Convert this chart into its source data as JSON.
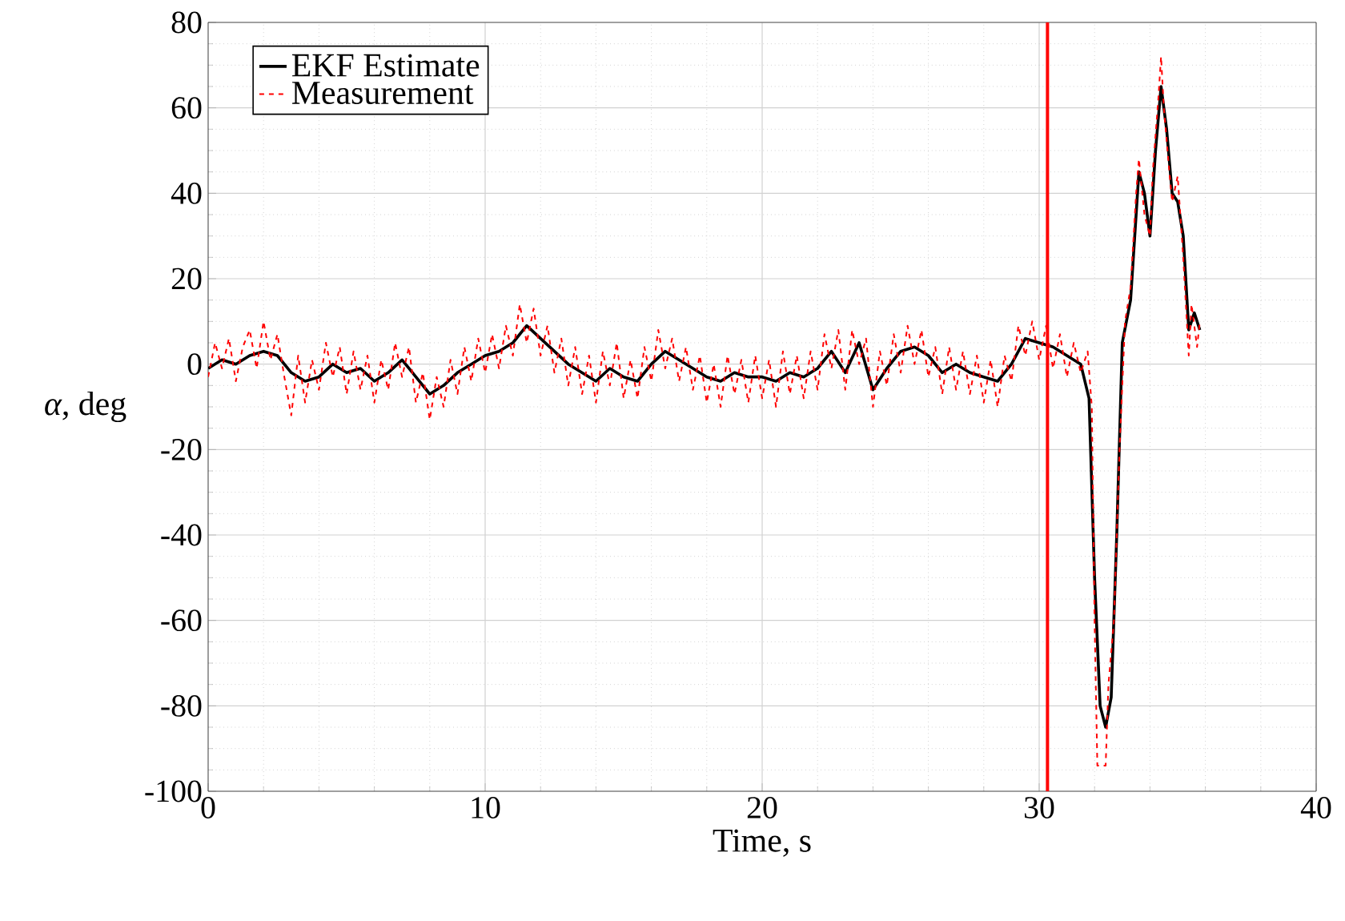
{
  "chart_data": {
    "type": "line",
    "xlabel": "Time, s",
    "ylabel": "*α*, deg",
    "xlim": [
      0,
      40
    ],
    "ylim": [
      -100,
      80
    ],
    "xticks": [
      0,
      10,
      20,
      30,
      40
    ],
    "yticks": [
      -100,
      -80,
      -60,
      -40,
      -20,
      0,
      20,
      40,
      60,
      80
    ],
    "grid": true,
    "legend": "top left",
    "ref_lines": [
      {
        "axis": "x",
        "value": 30.3,
        "color": "#ff0000",
        "line_style": "solid"
      }
    ],
    "series": [
      {
        "name": "EKF Estimate",
        "color": "#000000",
        "line_style": "solid",
        "x": [
          0,
          0.5,
          1,
          1.5,
          2,
          2.5,
          3,
          3.5,
          4,
          4.5,
          5,
          5.5,
          6,
          6.5,
          7,
          7.5,
          8,
          8.5,
          9,
          9.5,
          10,
          10.5,
          11,
          11.5,
          12,
          12.5,
          13,
          13.5,
          14,
          14.5,
          15,
          15.5,
          16,
          16.5,
          17,
          17.5,
          18,
          18.5,
          19,
          19.5,
          20,
          20.5,
          21,
          21.5,
          22,
          22.5,
          23,
          23.5,
          24,
          24.5,
          25,
          25.5,
          26,
          26.5,
          27,
          27.5,
          28,
          28.5,
          29,
          29.5,
          30,
          30.5,
          31,
          31.5,
          31.8,
          32,
          32.2,
          32.4,
          32.6,
          32.8,
          33,
          33.3,
          33.6,
          33.8,
          34,
          34.2,
          34.4,
          34.6,
          34.8,
          35,
          35.2,
          35.4,
          35.6,
          35.8
        ],
        "values": [
          -1,
          1,
          0,
          2,
          3,
          2,
          -2,
          -4,
          -3,
          0,
          -2,
          -1,
          -4,
          -2,
          1,
          -3,
          -7,
          -5,
          -2,
          0,
          2,
          3,
          5,
          9,
          6,
          3,
          0,
          -2,
          -4,
          -1,
          -3,
          -4,
          0,
          3,
          1,
          -1,
          -3,
          -4,
          -2,
          -3,
          -3,
          -4,
          -2,
          -3,
          -1,
          3,
          -2,
          5,
          -6,
          -1,
          3,
          4,
          2,
          -2,
          0,
          -2,
          -3,
          -4,
          0,
          6,
          5,
          4,
          2,
          0,
          -8,
          -50,
          -80,
          -85,
          -78,
          -40,
          5,
          15,
          45,
          40,
          30,
          50,
          65,
          55,
          40,
          38,
          30,
          8,
          12,
          8
        ]
      },
      {
        "name": "Measurement",
        "color": "#ff0000",
        "line_style": "dashed",
        "x": [
          0,
          0.25,
          0.5,
          0.75,
          1,
          1.25,
          1.5,
          1.75,
          2,
          2.25,
          2.5,
          2.75,
          3,
          3.25,
          3.5,
          3.75,
          4,
          4.25,
          4.5,
          4.75,
          5,
          5.25,
          5.5,
          5.75,
          6,
          6.25,
          6.5,
          6.75,
          7,
          7.25,
          7.5,
          7.75,
          8,
          8.25,
          8.5,
          8.75,
          9,
          9.25,
          9.5,
          9.75,
          10,
          10.25,
          10.5,
          10.75,
          11,
          11.25,
          11.5,
          11.75,
          12,
          12.25,
          12.5,
          12.75,
          13,
          13.25,
          13.5,
          13.75,
          14,
          14.25,
          14.5,
          14.75,
          15,
          15.25,
          15.5,
          15.75,
          16,
          16.25,
          16.5,
          16.75,
          17,
          17.25,
          17.5,
          17.75,
          18,
          18.25,
          18.5,
          18.75,
          19,
          19.25,
          19.5,
          19.75,
          20,
          20.25,
          20.5,
          20.75,
          21,
          21.25,
          21.5,
          21.75,
          22,
          22.25,
          22.5,
          22.75,
          23,
          23.25,
          23.5,
          23.75,
          24,
          24.25,
          24.5,
          24.75,
          25,
          25.25,
          25.5,
          25.75,
          26,
          26.25,
          26.5,
          26.75,
          27,
          27.25,
          27.5,
          27.75,
          28,
          28.25,
          28.5,
          28.75,
          29,
          29.25,
          29.5,
          29.75,
          30,
          30.25,
          30.5,
          30.75,
          31,
          31.25,
          31.5,
          31.75,
          31.9,
          32,
          32.1,
          32.4,
          32.5,
          32.7,
          32.9,
          33.1,
          33.3,
          33.5,
          33.6,
          33.8,
          34,
          34.1,
          34.3,
          34.4,
          34.5,
          34.7,
          34.8,
          35,
          35.2,
          35.4,
          35.5,
          35.7,
          35.8
        ],
        "values": [
          -3,
          5,
          -1,
          6,
          -4,
          4,
          8,
          -1,
          10,
          1,
          7,
          -3,
          -12,
          2,
          -9,
          1,
          -6,
          5,
          -3,
          4,
          -7,
          3,
          -6,
          2,
          -9,
          1,
          -6,
          5,
          -3,
          4,
          -9,
          -2,
          -13,
          -3,
          -10,
          1,
          -7,
          4,
          -4,
          6,
          -2,
          7,
          -1,
          9,
          2,
          14,
          5,
          13,
          2,
          9,
          -2,
          6,
          -5,
          4,
          -7,
          2,
          -9,
          3,
          -5,
          5,
          -8,
          1,
          -8,
          4,
          -4,
          8,
          -1,
          6,
          -4,
          4,
          -6,
          2,
          -9,
          0,
          -10,
          2,
          -7,
          1,
          -9,
          2,
          -8,
          1,
          -10,
          3,
          -7,
          2,
          -8,
          3,
          -6,
          7,
          -1,
          8,
          -6,
          8,
          0,
          6,
          -10,
          3,
          -5,
          7,
          -2,
          9,
          0,
          8,
          -3,
          4,
          -7,
          4,
          -6,
          3,
          -7,
          2,
          -9,
          1,
          -10,
          2,
          -4,
          9,
          2,
          10,
          1,
          9,
          -1,
          7,
          -3,
          5,
          -2,
          3,
          -10,
          -60,
          -94,
          -94,
          -75,
          -60,
          -20,
          10,
          18,
          40,
          48,
          35,
          30,
          45,
          62,
          72,
          60,
          45,
          38,
          44,
          25,
          2,
          14,
          4,
          10
        ]
      }
    ]
  }
}
